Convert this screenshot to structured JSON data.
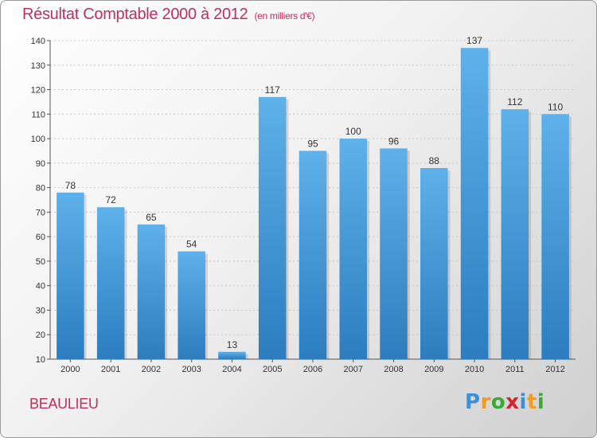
{
  "title": "Résultat Comptable 2000 à 2012",
  "subtitle": "(en milliers d'€)",
  "location": "BEAULIEU",
  "brand": {
    "letters": [
      "P",
      "r",
      "o",
      "x",
      "i",
      "t",
      "i"
    ],
    "colors": [
      "#3a8fd6",
      "#f29b1d",
      "#3aaa35",
      "#d8232a",
      "#3a8fd6",
      "#f29b1d",
      "#3aaa35"
    ]
  },
  "colors": {
    "bar_top": "#5eb1ea",
    "bar_bottom": "#2b7dbf",
    "title": "#c0305b"
  },
  "chart_data": {
    "type": "bar",
    "categories": [
      "2000",
      "2001",
      "2002",
      "2003",
      "2004",
      "2005",
      "2006",
      "2007",
      "2008",
      "2009",
      "2010",
      "2011",
      "2012"
    ],
    "values": [
      78,
      72,
      65,
      54,
      13,
      117,
      95,
      100,
      96,
      88,
      137,
      112,
      110
    ],
    "ylim": [
      10,
      140
    ],
    "yticks": [
      10,
      20,
      30,
      40,
      50,
      60,
      70,
      80,
      90,
      100,
      110,
      120,
      130,
      140
    ],
    "grid": true,
    "xlabel": "",
    "ylabel": ""
  }
}
